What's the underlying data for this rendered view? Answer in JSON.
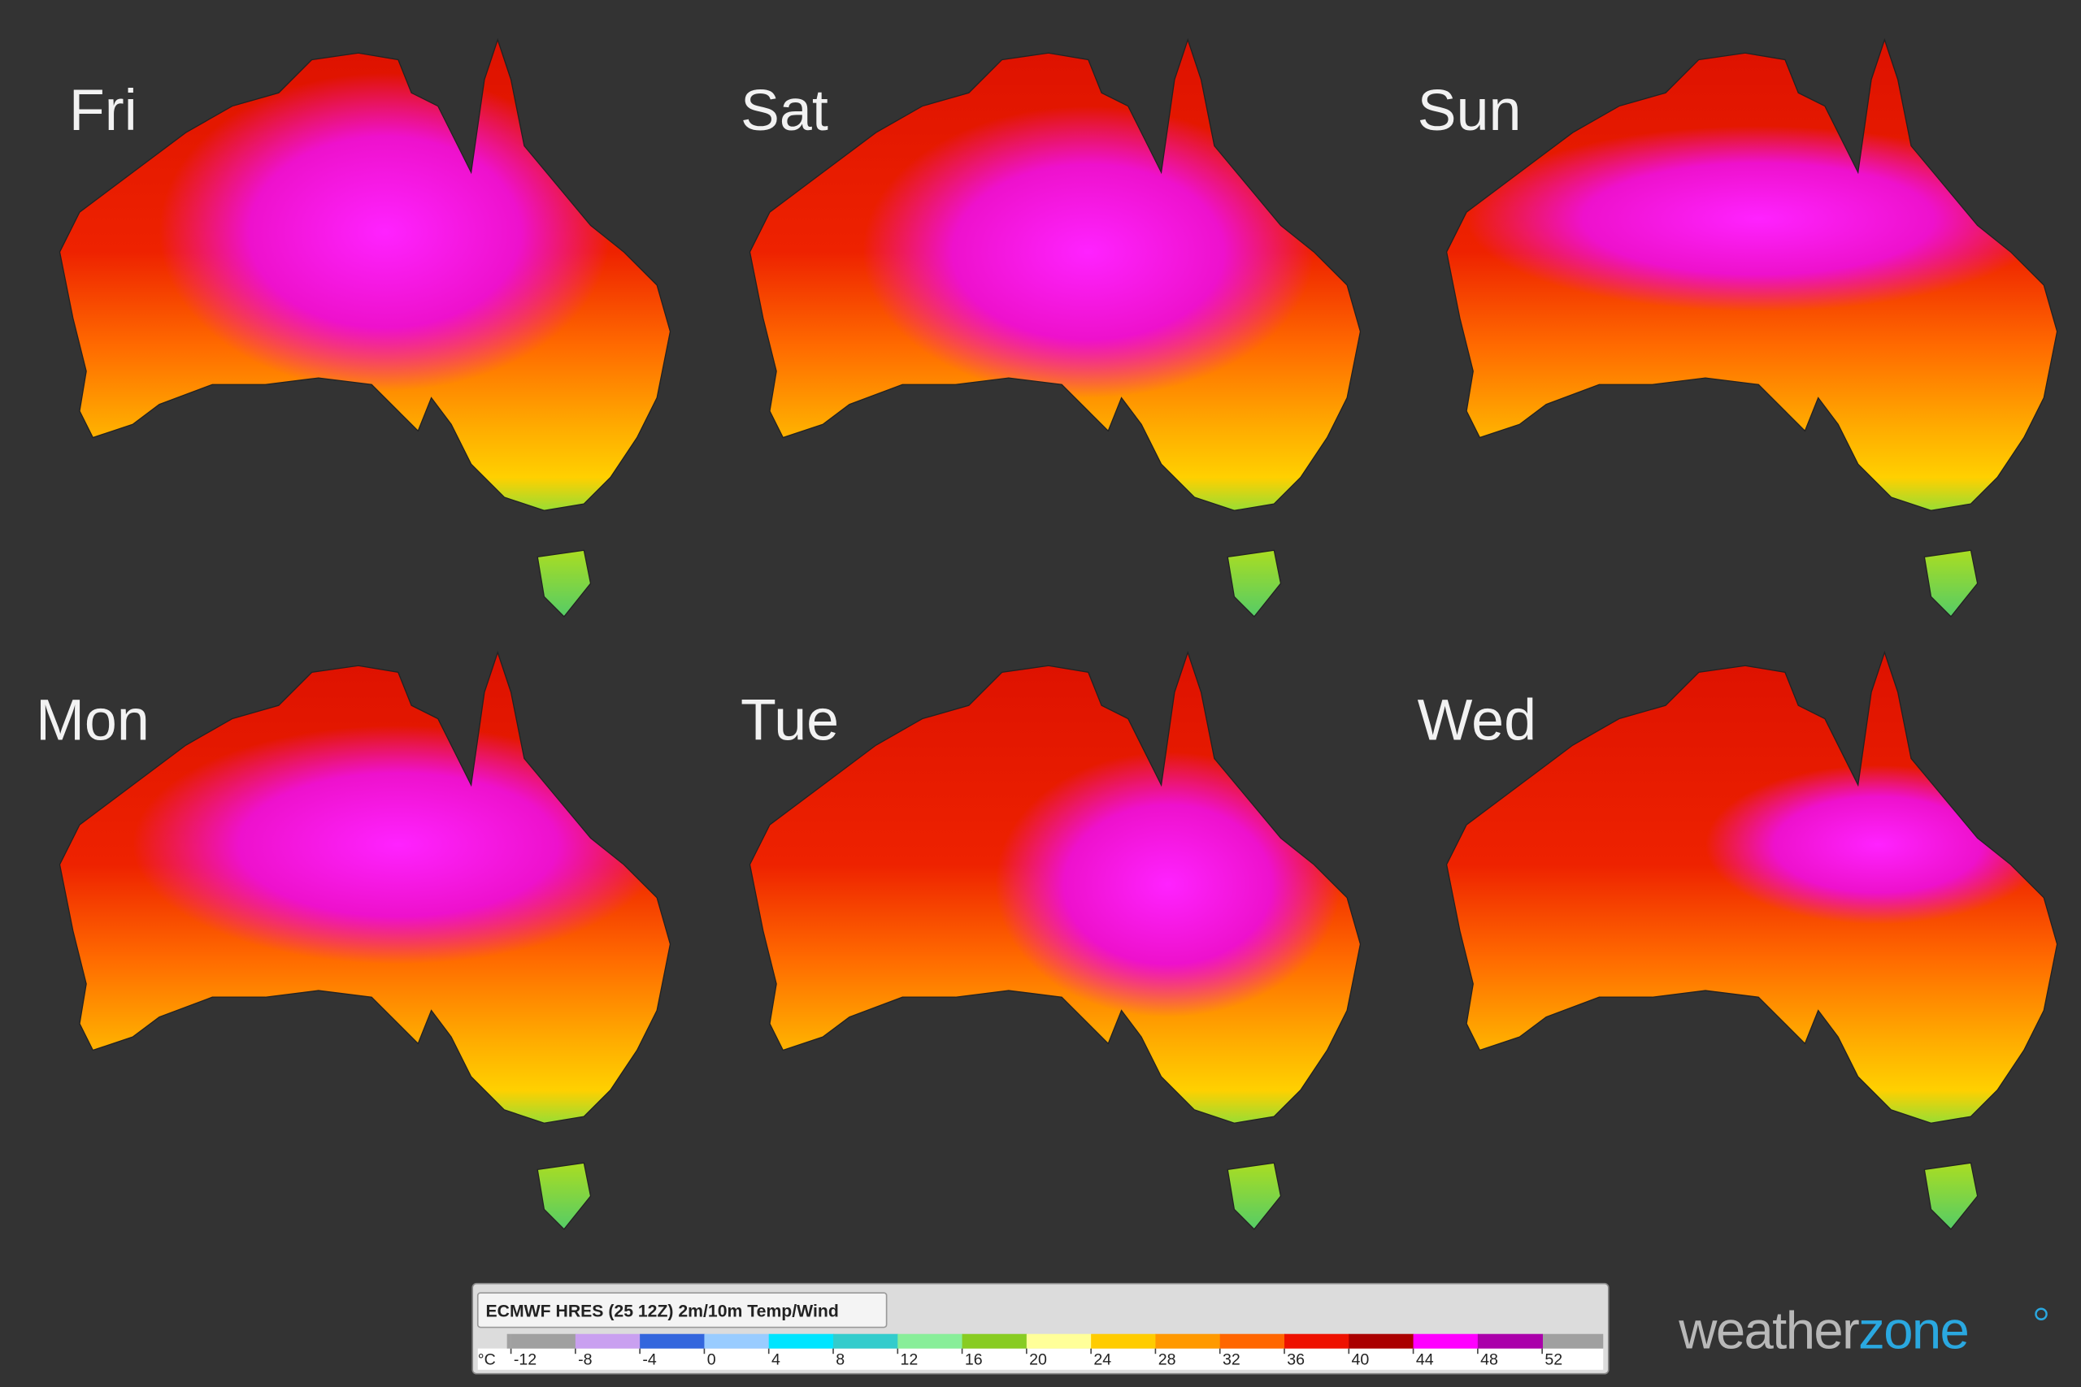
{
  "panels": [
    {
      "label": "Fri"
    },
    {
      "label": "Sat"
    },
    {
      "label": "Sun"
    },
    {
      "label": "Mon"
    },
    {
      "label": "Tue"
    },
    {
      "label": "Wed"
    }
  ],
  "legend": {
    "title": "ECMWF HRES (25 12Z) 2m/10m Temp/Wind",
    "unit": "°C",
    "ticks": [
      -12,
      -8,
      -4,
      0,
      4,
      8,
      12,
      16,
      20,
      24,
      28,
      32,
      36,
      40,
      44,
      48,
      52
    ],
    "colors": [
      "#a0a0a0",
      "#c9a0f0",
      "#3366dd",
      "#99ccff",
      "#00e5ff",
      "#33cccc",
      "#88ee99",
      "#88cc22",
      "#ffff99",
      "#ffcc00",
      "#ff9900",
      "#ff6600",
      "#ee1100",
      "#aa0000",
      "#ff00ff",
      "#aa00aa"
    ]
  },
  "logo": {
    "part1": "weather",
    "part2": "zone"
  }
}
